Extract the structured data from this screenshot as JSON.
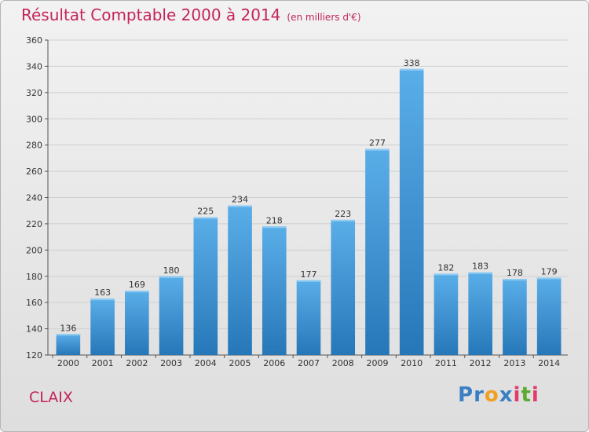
{
  "header": {
    "title": "Résultat Comptable 2000 à 2014",
    "subtitle": "(en milliers d'€)"
  },
  "commune": "CLAIX",
  "logo": {
    "text": "Proxiti",
    "letters": [
      {
        "ch": "P",
        "color": "#3a7fc4"
      },
      {
        "ch": "r",
        "color": "#3a7fc4"
      },
      {
        "ch": "o",
        "color": "#f0a020"
      },
      {
        "ch": "x",
        "color": "#3a7fc4"
      },
      {
        "ch": "i",
        "color": "#e23a6a"
      },
      {
        "ch": "t",
        "color": "#5aab2e"
      },
      {
        "ch": "i",
        "color": "#e23a6a"
      }
    ]
  },
  "colors": {
    "title": "#c4245a",
    "bar_light": "#5aaee8",
    "bar_dark": "#2677b8",
    "grid": "#cfcfcf"
  },
  "chart_data": {
    "type": "bar",
    "title": "Résultat Comptable 2000 à 2014",
    "subtitle": "(en milliers d'€)",
    "categories": [
      "2000",
      "2001",
      "2002",
      "2003",
      "2004",
      "2005",
      "2006",
      "2007",
      "2008",
      "2009",
      "2010",
      "2011",
      "2012",
      "2013",
      "2014"
    ],
    "values": [
      136,
      163,
      169,
      180,
      225,
      234,
      218,
      177,
      223,
      277,
      338,
      182,
      183,
      178,
      179
    ],
    "ylim": [
      120,
      360
    ],
    "yticks": [
      120,
      140,
      160,
      180,
      200,
      220,
      240,
      260,
      280,
      300,
      320,
      340,
      360
    ],
    "grid": true,
    "data_labels": true
  }
}
